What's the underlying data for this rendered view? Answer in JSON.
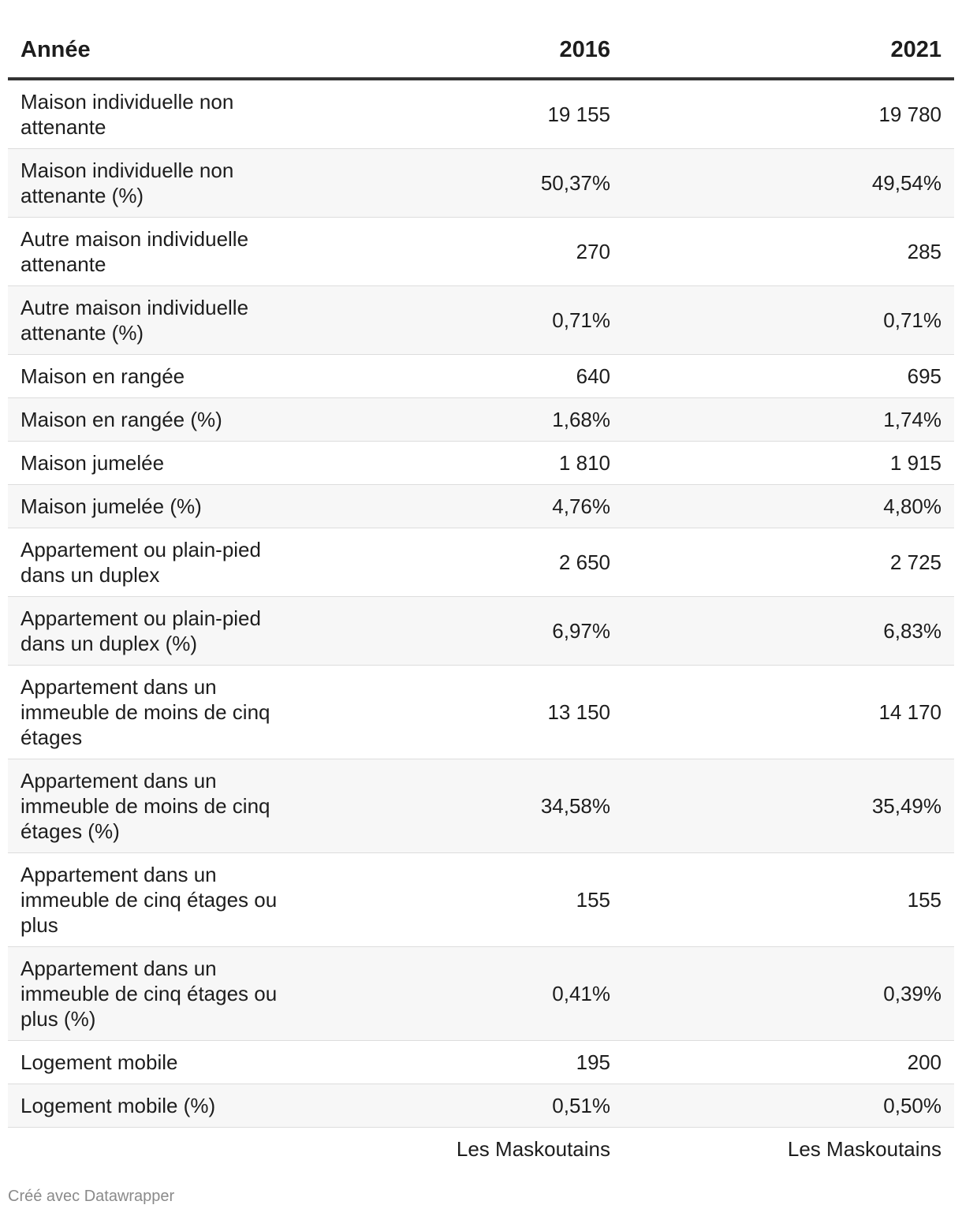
{
  "chart_data": {
    "type": "table",
    "columns": [
      "Année",
      "2016",
      "2021"
    ],
    "rows": [
      {
        "label": "Maison individuelle non attenante",
        "values": [
          "19 155",
          "19 780"
        ]
      },
      {
        "label": "Maison individuelle non attenante (%)",
        "values": [
          "50,37%",
          "49,54%"
        ]
      },
      {
        "label": "Autre maison individuelle attenante",
        "values": [
          "270",
          "285"
        ]
      },
      {
        "label": "Autre maison individuelle attenante (%)",
        "values": [
          "0,71%",
          "0,71%"
        ]
      },
      {
        "label": "Maison en rangée",
        "values": [
          "640",
          "695"
        ]
      },
      {
        "label": "Maison en rangée (%)",
        "values": [
          "1,68%",
          "1,74%"
        ]
      },
      {
        "label": "Maison jumelée",
        "values": [
          "1 810",
          "1 915"
        ]
      },
      {
        "label": "Maison jumelée (%)",
        "values": [
          "4,76%",
          "4,80%"
        ]
      },
      {
        "label": "Appartement ou plain-pied dans un duplex",
        "values": [
          "2 650",
          "2 725"
        ]
      },
      {
        "label": "Appartement ou plain-pied dans un duplex (%)",
        "values": [
          "6,97%",
          "6,83%"
        ]
      },
      {
        "label": "Appartement dans un immeuble de moins de cinq étages",
        "values": [
          "13 150",
          "14 170"
        ]
      },
      {
        "label": "Appartement dans un immeuble de moins de cinq étages (%)",
        "values": [
          "34,58%",
          "35,49%"
        ]
      },
      {
        "label": "Appartement dans un immeuble de cinq étages ou plus",
        "values": [
          "155",
          "155"
        ]
      },
      {
        "label": "Appartement dans un immeuble de cinq étages ou plus (%)",
        "values": [
          "0,41%",
          "0,39%"
        ]
      },
      {
        "label": "Logement mobile",
        "values": [
          "195",
          "200"
        ]
      },
      {
        "label": "Logement mobile (%)",
        "values": [
          "0,51%",
          "0,50%"
        ]
      }
    ],
    "footer": [
      "Les Maskoutains",
      "Les Maskoutains"
    ]
  },
  "credit": "Créé avec Datawrapper",
  "colors": {
    "text": "#1d1d1d",
    "header_rule": "#333333",
    "row_alt": "#f7f7f7",
    "row_rule": "#dddddd",
    "credit": "#8a8a8a"
  }
}
